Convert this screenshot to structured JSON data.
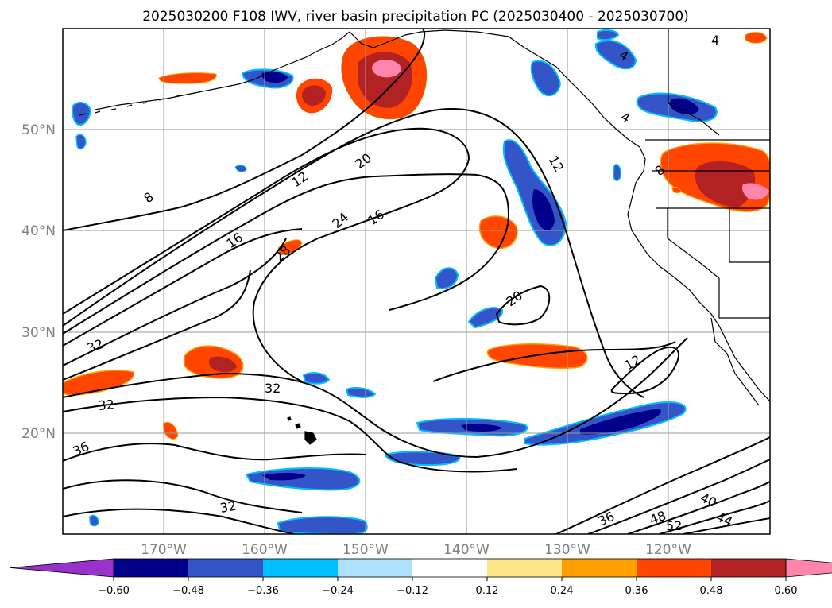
{
  "title": "2025030200 F108 IWV, river basin precipitation PC (2025030400 - 2025030700)",
  "map": {
    "lon_range": [
      -180,
      -110
    ],
    "lat_range": [
      10,
      60
    ],
    "lat_ticks": [
      {
        "value": 50,
        "label": "50°N"
      },
      {
        "value": 40,
        "label": "40°N"
      },
      {
        "value": 30,
        "label": "30°N"
      },
      {
        "value": 20,
        "label": "20°N"
      }
    ],
    "lon_ticks": [
      {
        "value": -170,
        "label": "170°W"
      },
      {
        "value": -160,
        "label": "160°W"
      },
      {
        "value": -150,
        "label": "150°W"
      },
      {
        "value": -140,
        "label": "140°W"
      },
      {
        "value": -130,
        "label": "130°W"
      },
      {
        "value": -120,
        "label": "120°W"
      }
    ],
    "gridlines": true,
    "coastlines": true,
    "contour_field": "IWV",
    "contour_labels": [
      "8",
      "12",
      "16",
      "20",
      "24",
      "28",
      "32",
      "32",
      "32",
      "36",
      "20",
      "16",
      "12",
      "12",
      "4",
      "4",
      "4",
      "8",
      "32",
      "36",
      "40",
      "44",
      "48",
      "52"
    ],
    "shaded_field": "river basin precipitation PC"
  },
  "colorbar": {
    "extend": "both",
    "tick_labels": [
      "−0.60",
      "−0.48",
      "−0.36",
      "−0.24",
      "−0.12",
      "0.12",
      "0.24",
      "0.36",
      "0.48",
      "0.60"
    ],
    "colors": [
      "#9932CC",
      "#00008B",
      "#3455C8",
      "#00BFFF",
      "#ADE0FA",
      "#FFFFFF",
      "#FDE68A",
      "#FFA000",
      "#FF4500",
      "#B22222",
      "#FF85AD"
    ]
  }
}
